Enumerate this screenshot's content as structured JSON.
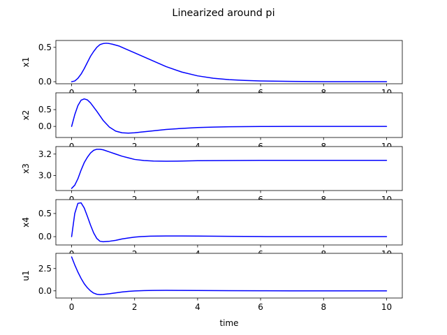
{
  "chart_data": {
    "type": "line",
    "title": "Linearized around pi",
    "xlabel": "time",
    "series_color": "#0000ff",
    "xlim": [
      -0.5,
      10.5
    ],
    "xticks": [
      0,
      2,
      4,
      6,
      8,
      10
    ],
    "grid": false,
    "legend": "none",
    "subplots": [
      {
        "ylabel": "x1",
        "ylim": [
          -0.03,
          0.6
        ],
        "yticks": [
          0.0,
          0.5
        ],
        "ytick_labels": [
          "0.0",
          "0.5"
        ],
        "x": [
          0,
          0.1,
          0.2,
          0.3,
          0.4,
          0.5,
          0.6,
          0.7,
          0.8,
          0.9,
          1.0,
          1.1,
          1.2,
          1.3,
          1.5,
          1.7,
          2.0,
          2.5,
          3.0,
          3.5,
          4.0,
          4.5,
          5.0,
          5.5,
          6.0,
          7.0,
          8.0,
          9.0,
          10.0
        ],
        "y": [
          0.0,
          0.01,
          0.05,
          0.11,
          0.19,
          0.28,
          0.37,
          0.44,
          0.5,
          0.54,
          0.555,
          0.56,
          0.555,
          0.545,
          0.52,
          0.48,
          0.42,
          0.32,
          0.22,
          0.14,
          0.085,
          0.05,
          0.03,
          0.018,
          0.01,
          0.004,
          0.001,
          0.0,
          0.0
        ]
      },
      {
        "ylabel": "x2",
        "ylim": [
          -0.33,
          1.0
        ],
        "yticks": [
          0.0,
          0.5
        ],
        "ytick_labels": [
          "0.0",
          "0.5"
        ],
        "x": [
          0,
          0.1,
          0.2,
          0.3,
          0.4,
          0.5,
          0.6,
          0.8,
          1.0,
          1.2,
          1.4,
          1.6,
          1.8,
          2.0,
          2.2,
          2.5,
          3.0,
          3.5,
          4.0,
          4.5,
          5.0,
          6.0,
          7.0,
          8.0,
          9.0,
          10.0
        ],
        "y": [
          0.0,
          0.35,
          0.62,
          0.78,
          0.82,
          0.79,
          0.7,
          0.45,
          0.18,
          -0.02,
          -0.14,
          -0.19,
          -0.2,
          -0.19,
          -0.17,
          -0.14,
          -0.09,
          -0.06,
          -0.035,
          -0.02,
          -0.01,
          -0.003,
          0.0,
          0.0,
          0.0,
          0.0
        ]
      },
      {
        "ylabel": "x3",
        "ylim": [
          2.86,
          3.27
        ],
        "yticks": [
          3.0,
          3.2
        ],
        "ytick_labels": [
          "3.0",
          "3.2"
        ],
        "x": [
          0,
          0.1,
          0.2,
          0.3,
          0.4,
          0.5,
          0.6,
          0.7,
          0.8,
          0.9,
          1.0,
          1.2,
          1.4,
          1.6,
          1.8,
          2.0,
          2.3,
          2.6,
          3.0,
          3.5,
          4.0,
          5.0,
          6.0,
          7.0,
          8.0,
          9.0,
          10.0
        ],
        "y": [
          2.88,
          2.91,
          2.97,
          3.05,
          3.12,
          3.17,
          3.21,
          3.235,
          3.245,
          3.245,
          3.24,
          3.22,
          3.2,
          3.18,
          3.165,
          3.15,
          3.14,
          3.135,
          3.133,
          3.135,
          3.138,
          3.14,
          3.1415,
          3.1416,
          3.1416,
          3.1416,
          3.1416
        ]
      },
      {
        "ylabel": "x4",
        "ylim": [
          -0.18,
          0.8
        ],
        "yticks": [
          0.0,
          0.5
        ],
        "ytick_labels": [
          "0.0",
          "0.5"
        ],
        "x": [
          0,
          0.1,
          0.2,
          0.3,
          0.4,
          0.5,
          0.6,
          0.7,
          0.8,
          0.9,
          1.0,
          1.2,
          1.4,
          1.6,
          1.8,
          2.0,
          2.2,
          2.5,
          3.0,
          3.5,
          4.0,
          5.0,
          6.0,
          7.0,
          8.0,
          9.0,
          10.0
        ],
        "y": [
          0.0,
          0.5,
          0.72,
          0.73,
          0.62,
          0.44,
          0.25,
          0.08,
          -0.04,
          -0.1,
          -0.11,
          -0.1,
          -0.08,
          -0.05,
          -0.03,
          -0.01,
          0.0,
          0.01,
          0.015,
          0.015,
          0.012,
          0.006,
          0.002,
          0.0,
          0.0,
          0.0,
          0.0
        ]
      },
      {
        "ylabel": "u1",
        "ylim": [
          -0.8,
          4.2
        ],
        "yticks": [
          0.0,
          2.5
        ],
        "ytick_labels": [
          "0.0",
          "2.5"
        ],
        "x": [
          0,
          0.1,
          0.2,
          0.3,
          0.4,
          0.5,
          0.6,
          0.7,
          0.8,
          0.9,
          1.0,
          1.2,
          1.4,
          1.6,
          1.8,
          2.0,
          2.3,
          2.6,
          3.0,
          3.5,
          4.0,
          5.0,
          6.0,
          7.0,
          8.0,
          9.0,
          10.0
        ],
        "y": [
          3.8,
          2.9,
          2.1,
          1.4,
          0.8,
          0.35,
          0.0,
          -0.25,
          -0.38,
          -0.42,
          -0.4,
          -0.32,
          -0.22,
          -0.13,
          -0.06,
          -0.01,
          0.03,
          0.05,
          0.06,
          0.05,
          0.04,
          0.02,
          0.008,
          0.003,
          0.001,
          0.0,
          0.0
        ]
      }
    ]
  }
}
